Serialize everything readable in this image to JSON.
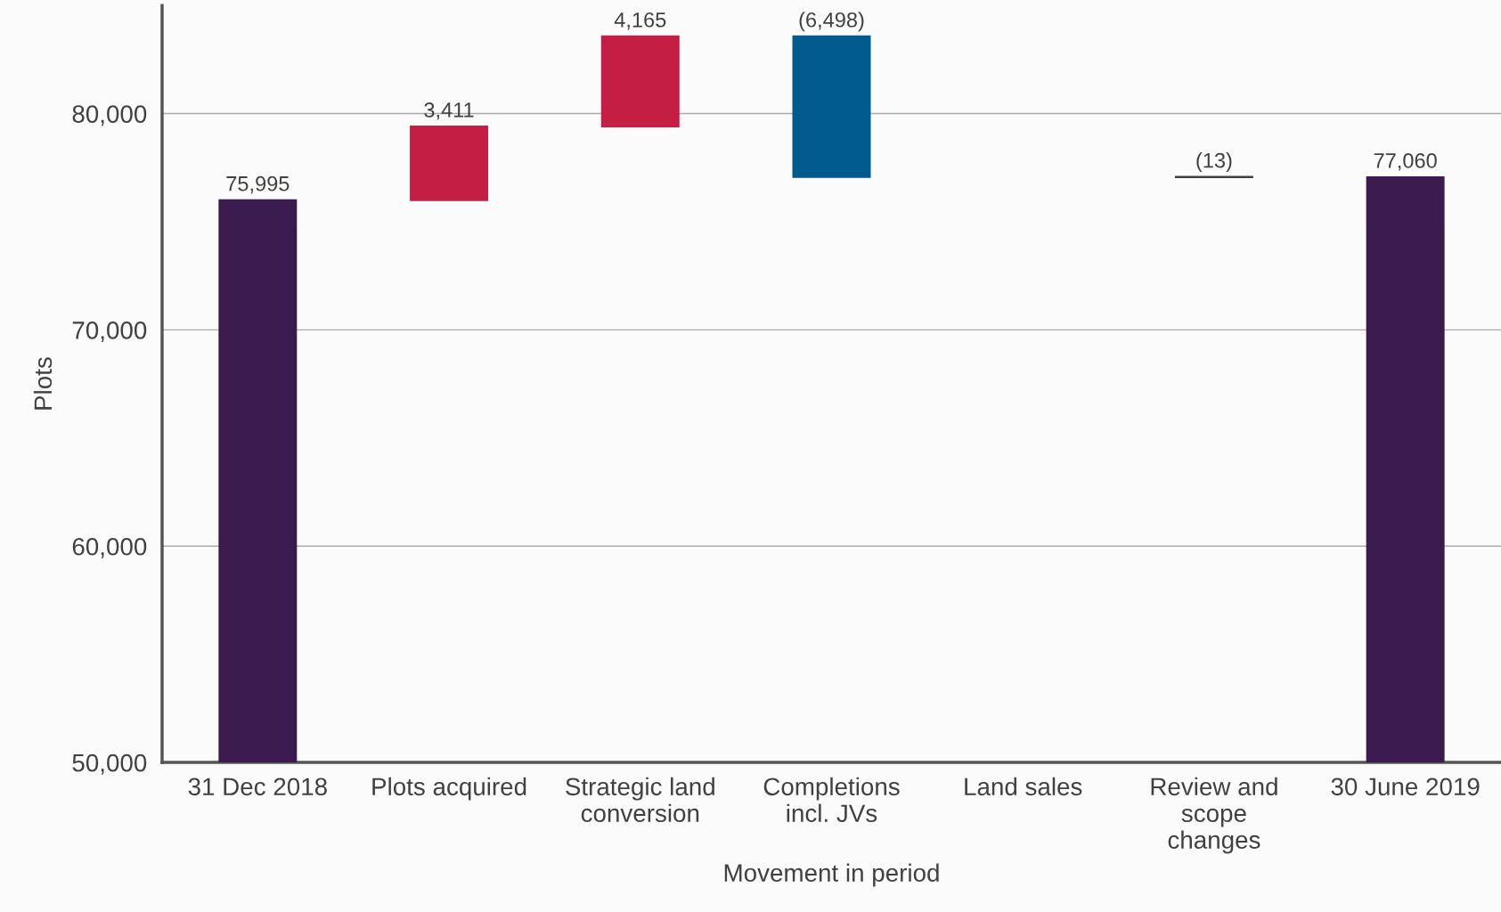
{
  "chart_data": {
    "type": "bar",
    "xlabel": "Movement in period",
    "ylabel": "Plots",
    "categories": [
      "31 Dec 2018",
      "Plots acquired",
      "Strategic land\nconversion",
      "Completions\nincl. JVs",
      "Land sales",
      "Review and\nscope\nchanges",
      "30 June 2019"
    ],
    "values": [
      75995,
      3411,
      4165,
      -6498,
      null,
      -13,
      77060
    ],
    "base": [
      null,
      75995,
      79406,
      83571,
      null,
      77073,
      null
    ],
    "colors": [
      "#3a1a4f",
      "#c41e45",
      "#c41e45",
      "#005a8c",
      "#3a1a4f",
      "#404040",
      "#3a1a4f"
    ],
    "value_labels": [
      "75,995",
      "3,411",
      "4,165",
      "(6,498)",
      null,
      "(13)",
      "77,060"
    ],
    "ylim": [
      50000,
      85000
    ],
    "yticks": [
      {
        "value": 50000,
        "label": "50,000"
      },
      {
        "value": 60000,
        "label": "60,000"
      },
      {
        "value": 70000,
        "label": "70,000"
      },
      {
        "value": 80000,
        "label": "80,000"
      }
    ],
    "grid": "y",
    "legend": false
  }
}
